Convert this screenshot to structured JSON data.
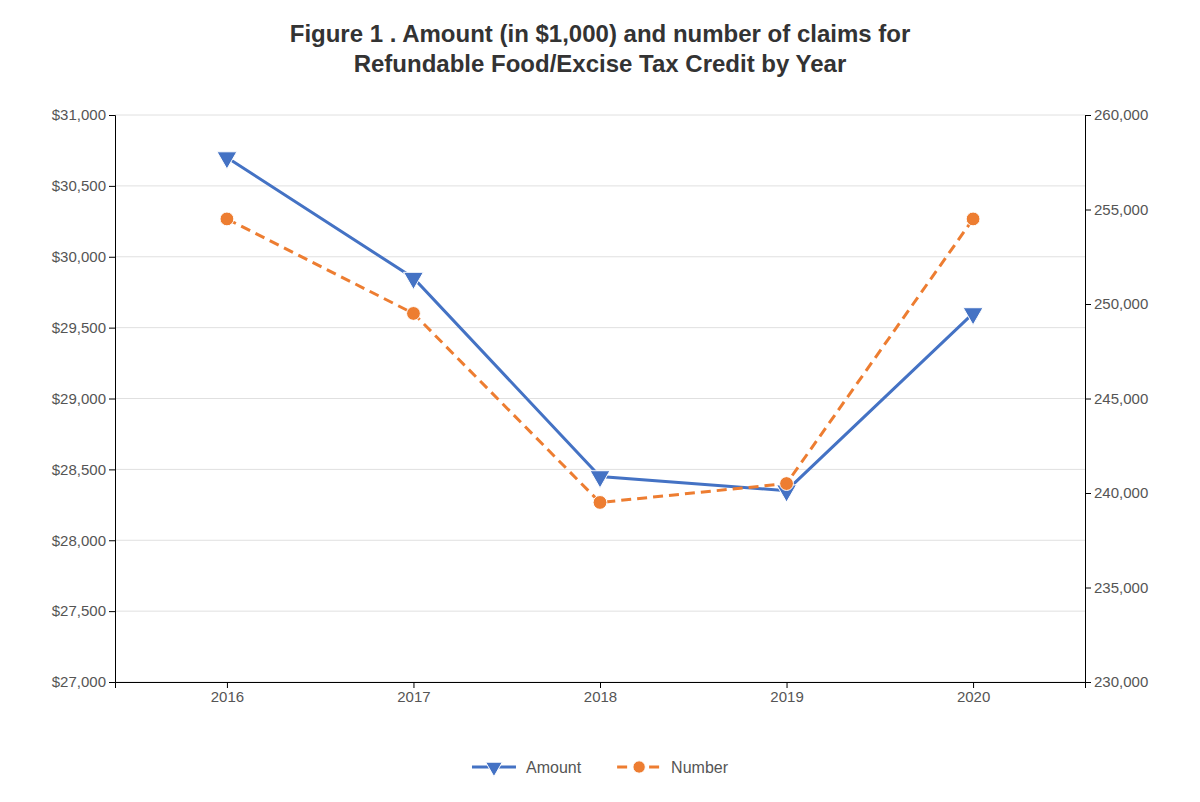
{
  "chart_data": {
    "type": "line",
    "title": [
      "Figure 1 . Amount (in $1,000) and number of claims for",
      "Refundable Food/Excise Tax Credit by Year"
    ],
    "x": [
      2016,
      2017,
      2018,
      2019,
      2020
    ],
    "xlim": [
      2015.4,
      2020.6
    ],
    "xticks": [
      2016,
      2017,
      2018,
      2019,
      2020
    ],
    "series": [
      {
        "name": "Amount",
        "color": "#4472C4",
        "marker": "triangle-down",
        "line_style": "solid",
        "values": [
          30700,
          29850,
          28450,
          28350,
          29600
        ]
      },
      {
        "name": "Number",
        "color": "#ED7D31",
        "marker": "circle",
        "line_style": "dashed",
        "axis": "y2",
        "values": [
          254500,
          249500,
          239500,
          240500,
          254500
        ]
      }
    ],
    "ylim": [
      27000,
      31000
    ],
    "yticks": [
      {
        "value": 27000,
        "label": "$27,000"
      },
      {
        "value": 27500,
        "label": "$27,500"
      },
      {
        "value": 28000,
        "label": "$28,000"
      },
      {
        "value": 28500,
        "label": "$28,500"
      },
      {
        "value": 29000,
        "label": "$29,000"
      },
      {
        "value": 29500,
        "label": "$29,500"
      },
      {
        "value": 30000,
        "label": "$30,000"
      },
      {
        "value": 30500,
        "label": "$30,500"
      },
      {
        "value": 31000,
        "label": "$31,000"
      }
    ],
    "y2lim": [
      230000,
      260000
    ],
    "y2ticks": [
      {
        "value": 230000,
        "label": "230,000"
      },
      {
        "value": 235000,
        "label": "235,000"
      },
      {
        "value": 240000,
        "label": "240,000"
      },
      {
        "value": 245000,
        "label": "245,000"
      },
      {
        "value": 250000,
        "label": "250,000"
      },
      {
        "value": 255000,
        "label": "255,000"
      },
      {
        "value": 260000,
        "label": "260,000"
      }
    ],
    "grid": true,
    "legend": "bottom"
  }
}
